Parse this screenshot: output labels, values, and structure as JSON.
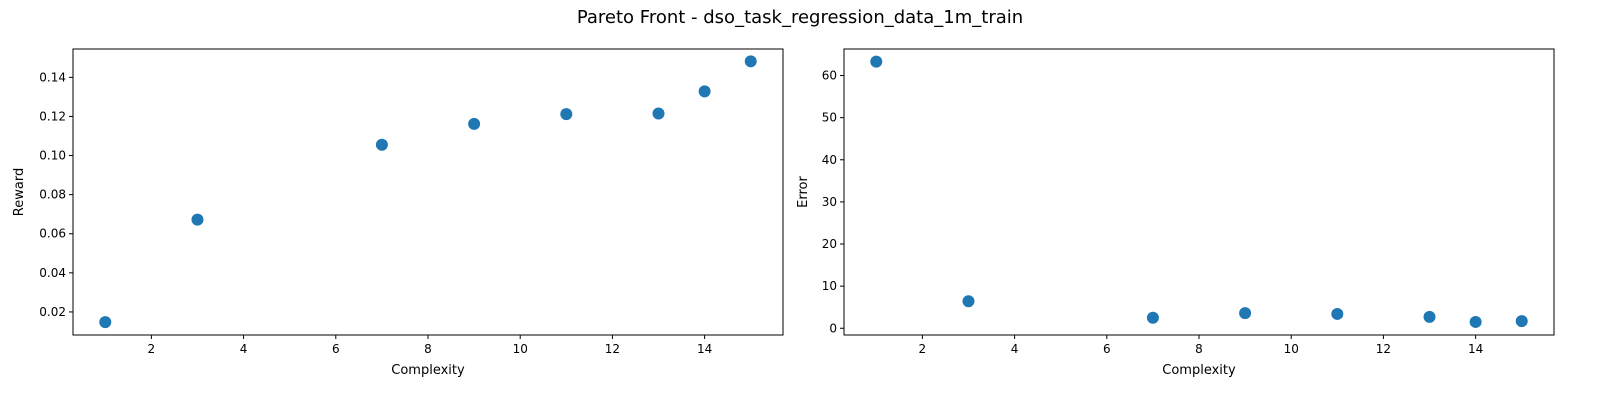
{
  "figure": {
    "title": "Pareto Front - dso_task_regression_data_1m_train"
  },
  "chart_data": [
    {
      "type": "scatter",
      "title": "",
      "xlabel": "Complexity",
      "ylabel": "Reward",
      "xlim": [
        0.3,
        15.7
      ],
      "ylim": [
        0.0082,
        0.1545
      ],
      "xticks": [
        2,
        4,
        6,
        8,
        10,
        12,
        14
      ],
      "yticks": [
        0.02,
        0.04,
        0.06,
        0.08,
        0.1,
        0.12,
        0.14
      ],
      "ytick_labels": [
        "0.02",
        "0.04",
        "0.06",
        "0.08",
        "0.10",
        "0.12",
        "0.14"
      ],
      "color": "#1f77b4",
      "grid": false,
      "x": [
        1,
        3,
        7,
        9,
        11,
        13,
        14,
        15
      ],
      "y": [
        0.0148,
        0.0672,
        0.1055,
        0.1162,
        0.1212,
        0.1215,
        0.1328,
        0.1482
      ]
    },
    {
      "type": "scatter",
      "title": "",
      "xlabel": "Complexity",
      "ylabel": "Error",
      "xlim": [
        0.3,
        15.7
      ],
      "ylim": [
        -1.6,
        66.3
      ],
      "xticks": [
        2,
        4,
        6,
        8,
        10,
        12,
        14
      ],
      "yticks": [
        0,
        10,
        20,
        30,
        40,
        50,
        60
      ],
      "ytick_labels": [
        "0",
        "10",
        "20",
        "30",
        "40",
        "50",
        "60"
      ],
      "color": "#1f77b4",
      "grid": false,
      "x": [
        1,
        3,
        7,
        9,
        11,
        13,
        14,
        15
      ],
      "y": [
        63.3,
        6.4,
        2.5,
        3.6,
        3.4,
        2.7,
        1.5,
        1.7
      ]
    }
  ]
}
